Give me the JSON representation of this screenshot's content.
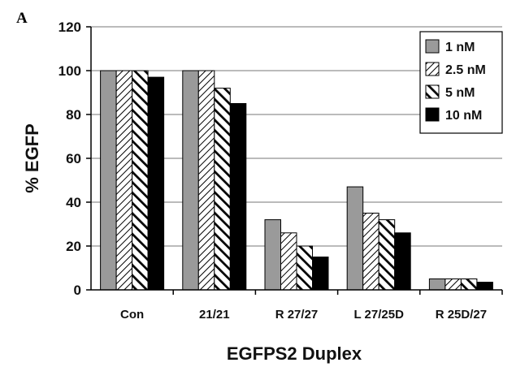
{
  "panel_label": "A",
  "chart_data": {
    "type": "bar",
    "categories": [
      "Con",
      "21/21",
      "R 27/27",
      "L 27/25D",
      "R 25D/27"
    ],
    "series": [
      {
        "name": "1 nM",
        "values": [
          100,
          100,
          32,
          47,
          5
        ],
        "fill": "gray"
      },
      {
        "name": "2.5 nM",
        "values": [
          100,
          100,
          26,
          35,
          5
        ],
        "fill": "diagonal-hatch-light"
      },
      {
        "name": "5 nM",
        "values": [
          100,
          92,
          20,
          32,
          5
        ],
        "fill": "diagonal-hatch-bold"
      },
      {
        "name": "10 nM",
        "values": [
          97,
          85,
          15,
          26,
          3.5
        ],
        "fill": "black"
      }
    ],
    "xlabel": "EGFPS2 Duplex",
    "ylabel": "% EGFP",
    "ylim": [
      0,
      120
    ],
    "yticks": [
      0,
      20,
      40,
      60,
      80,
      100,
      120
    ],
    "grid": true,
    "legend_position": "top-right",
    "colors": {
      "gray": "#9a9a9a",
      "black": "#000000",
      "grid": "#777777"
    }
  }
}
